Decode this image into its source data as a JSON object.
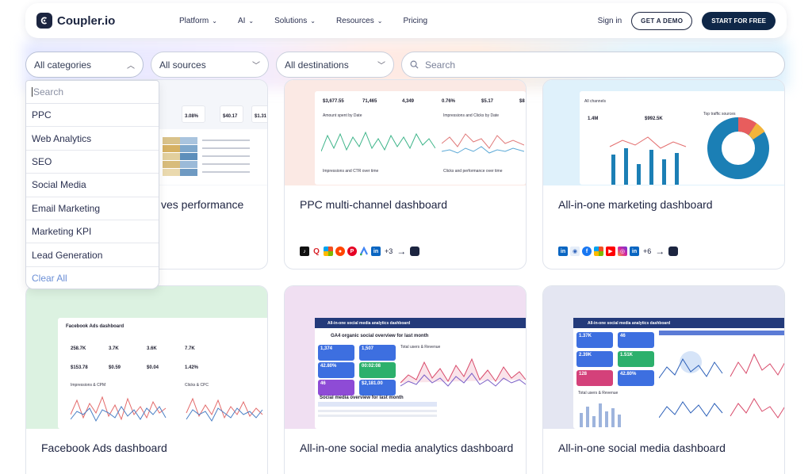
{
  "nav": {
    "logo_text": "Coupler.io",
    "menu": [
      {
        "label": "Platform",
        "has_dropdown": true
      },
      {
        "label": "AI",
        "has_dropdown": true
      },
      {
        "label": "Solutions",
        "has_dropdown": true
      },
      {
        "label": "Resources",
        "has_dropdown": true
      },
      {
        "label": "Pricing",
        "has_dropdown": false
      }
    ],
    "sign_in": "Sign in",
    "demo_button": "GET A DEMO",
    "start_button": "START FOR FREE"
  },
  "filters": {
    "categories": {
      "value": "All categories",
      "open": true
    },
    "sources": {
      "value": "All sources"
    },
    "destinations": {
      "value": "All destinations"
    },
    "search": {
      "placeholder": "Search"
    }
  },
  "category_dropdown": {
    "search_placeholder": "Search",
    "items": [
      "PPC",
      "Web Analytics",
      "SEO",
      "Social Media",
      "Email Marketing",
      "Marketing KPI",
      "Lead Generation"
    ],
    "clear_label": "Clear All"
  },
  "cards": [
    {
      "title_visible": "ves performance",
      "kpis": [
        "3.08%",
        "$40.17",
        "$1.31"
      ]
    },
    {
      "title": "PPC multi-channel dashboard",
      "kpis": [
        "$3,677.55",
        "71,465",
        "4,349",
        "0.76%",
        "$5.17",
        "$8"
      ],
      "chart_titles": [
        "Amount spent by Date",
        "Impressions and Clicks by Date",
        "Impressions and CTR over time",
        "Clicks and performance over time"
      ],
      "extra_sources": "+3"
    },
    {
      "title": "All-in-one marketing dashboard",
      "kpis": [
        "1.4M",
        "$992.5K"
      ],
      "chart_titles": [
        "All channels",
        "Top traffic sources"
      ],
      "extra_sources": "+6"
    },
    {
      "title": "Facebook Ads dashboard",
      "kpis": [
        "258.7K",
        "3.7K",
        "3.6K",
        "7.7K",
        "$153.78",
        "$0.59",
        "$0.04",
        "1.42%"
      ],
      "chart_titles": [
        "Facebook Ads dashboard",
        "Impressions & CPM",
        "Clicks & CPC"
      ]
    },
    {
      "title": "All-in-one social media analytics dashboard",
      "header": "All-in-one social media analytics dashboard",
      "sub_header": "GA4 organic social overview for last month",
      "kpis": [
        "1,374",
        "1,507",
        "42.80%",
        "00:02:08",
        "46",
        "$2,181.00"
      ],
      "chart_titles": [
        "Total users & Revenue",
        "Social media overview for last month"
      ]
    },
    {
      "title": "All-in-one social media dashboard",
      "header": "All-in-one social media analytics dashboard",
      "kpis": [
        "1.37K",
        "46",
        "2.39K",
        "1.51K",
        "128",
        "42.80%"
      ],
      "chart_titles": [
        "Total users & Revenue"
      ]
    }
  ],
  "colors": {
    "brand_dark": "#0f2748",
    "accent_blue": "#1b7fb5",
    "link_blue": "#6b8fd6"
  }
}
